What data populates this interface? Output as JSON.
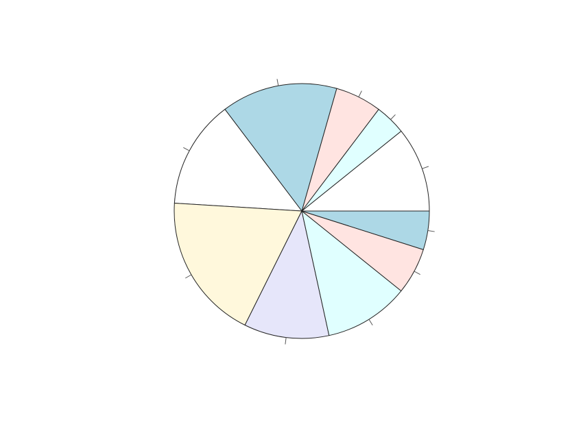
{
  "chart_data": {
    "type": "pie",
    "title": "",
    "slices": [
      {
        "label": "",
        "value": 11.0,
        "color": "#ffffff"
      },
      {
        "label": "",
        "value": 4.0,
        "color": "#e0ffff"
      },
      {
        "label": "",
        "value": 6.0,
        "color": "#ffe4e1"
      },
      {
        "label": "",
        "value": 15.0,
        "color": "#add8e6"
      },
      {
        "label": "",
        "value": 14.0,
        "color": "#ffffff"
      },
      {
        "label": "",
        "value": 19.0,
        "color": "#fff8dc"
      },
      {
        "label": "",
        "value": 11.0,
        "color": "#e6e6fa"
      },
      {
        "label": "",
        "value": 11.0,
        "color": "#e0ffff"
      },
      {
        "label": "",
        "value": 6.0,
        "color": "#ffe4e1"
      },
      {
        "label": "",
        "value": 5.0,
        "color": "#add8e6"
      }
    ],
    "start_angle_deg": 0,
    "direction": "counterclockwise-from-east",
    "legend": "none"
  }
}
